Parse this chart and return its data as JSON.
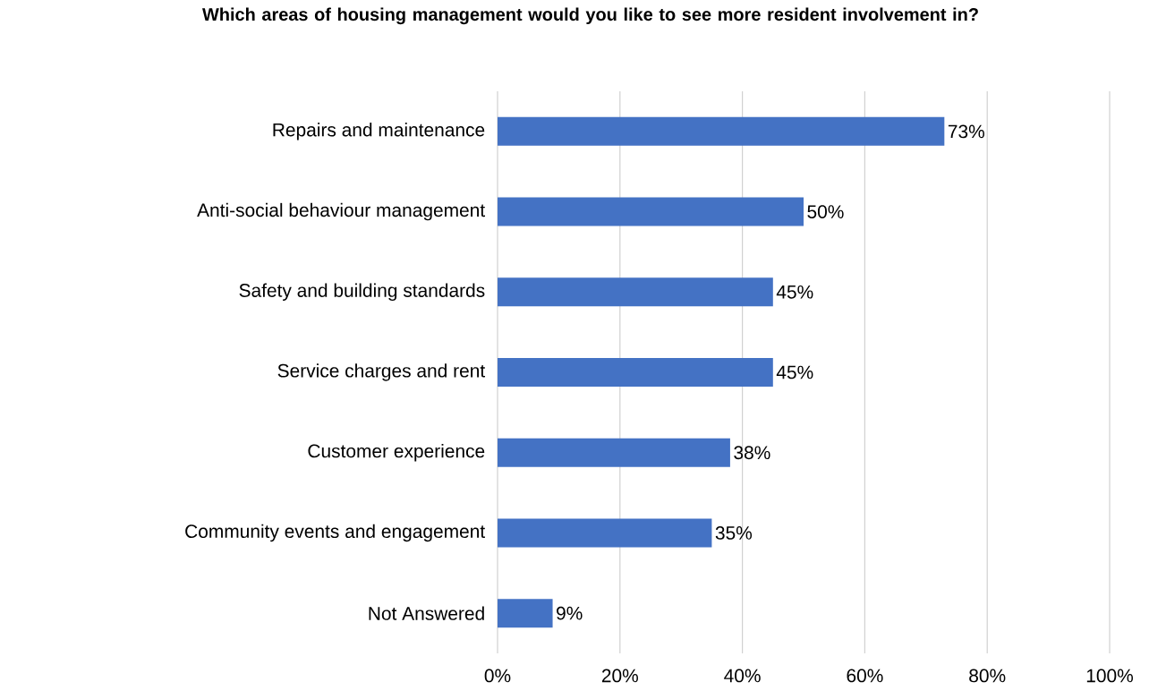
{
  "chart_data": {
    "type": "bar",
    "orientation": "horizontal",
    "title": "Which areas of housing management would you like to see more resident involvement in?",
    "categories": [
      "Repairs and maintenance",
      "Anti-social behaviour management",
      "Safety and building standards",
      "Service charges and rent",
      "Customer experience",
      "Community events and engagement",
      "Not Answered"
    ],
    "values": [
      73,
      50,
      45,
      45,
      38,
      35,
      9
    ],
    "value_labels": [
      "73%",
      "50%",
      "45%",
      "45%",
      "38%",
      "35%",
      "9%"
    ],
    "color": "#4472c4",
    "xlim": [
      0,
      100
    ],
    "xticks": [
      {
        "value": 0,
        "label": "0%"
      },
      {
        "value": 20,
        "label": "20%"
      },
      {
        "value": 40,
        "label": "40%"
      },
      {
        "value": 60,
        "label": "60%"
      },
      {
        "value": 80,
        "label": "80%"
      },
      {
        "value": 100,
        "label": "100%"
      }
    ],
    "grid": "x"
  }
}
